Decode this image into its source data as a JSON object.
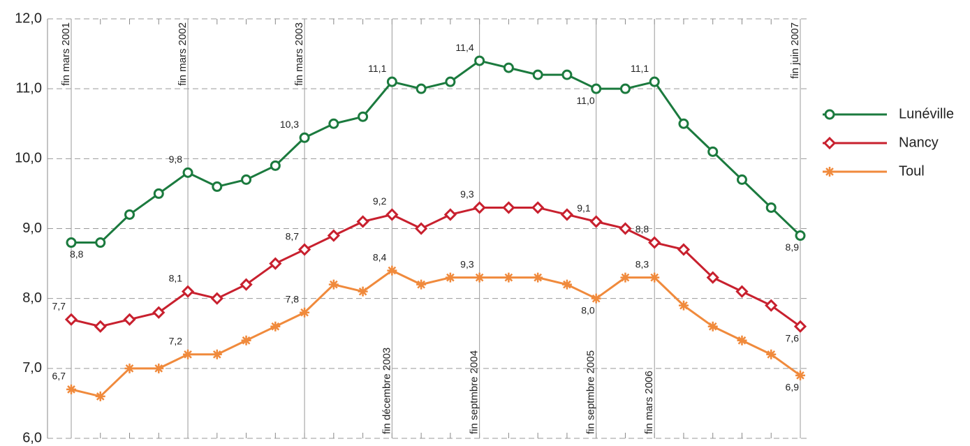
{
  "chart_data": {
    "type": "line",
    "categories": [
      "fin mars 2001",
      null,
      null,
      null,
      "fin mars 2002",
      null,
      null,
      null,
      "fin mars 2003",
      null,
      null,
      "fin décembre 2003",
      null,
      null,
      "fin septmbre 2004",
      null,
      null,
      null,
      "fin septmbre 2005",
      null,
      "fin mars 2006",
      null,
      null,
      null,
      null,
      "fin juin 2007"
    ],
    "series": [
      {
        "name": "Lunéville",
        "color": "#1b7a3e",
        "marker": "circle",
        "values": [
          8.8,
          8.8,
          9.2,
          9.5,
          9.8,
          9.6,
          9.7,
          9.9,
          10.3,
          10.5,
          10.6,
          11.1,
          11.0,
          11.1,
          11.4,
          11.3,
          11.2,
          11.2,
          11.0,
          11.0,
          11.1,
          10.5,
          10.1,
          9.7,
          9.3,
          8.9
        ],
        "value_labels": [
          "8,8",
          null,
          null,
          null,
          "9,8",
          null,
          null,
          null,
          "10,3",
          null,
          null,
          "11,1",
          null,
          null,
          "11,4",
          null,
          null,
          null,
          "11,0",
          null,
          "11,1",
          null,
          null,
          null,
          null,
          "8,9"
        ]
      },
      {
        "name": "Nancy",
        "color": "#c8202e",
        "marker": "diamond",
        "values": [
          7.7,
          7.6,
          7.7,
          7.8,
          8.1,
          8.0,
          8.2,
          8.5,
          8.7,
          8.9,
          9.1,
          9.2,
          9.0,
          9.2,
          9.3,
          9.3,
          9.3,
          9.2,
          9.1,
          9.0,
          8.8,
          8.7,
          8.3,
          8.1,
          7.9,
          7.6
        ],
        "value_labels": [
          "7,7",
          null,
          null,
          null,
          "8,1",
          null,
          null,
          null,
          "8,7",
          null,
          null,
          "9,2",
          null,
          null,
          "9,3",
          null,
          null,
          null,
          "9,1",
          null,
          "8,8",
          null,
          null,
          null,
          null,
          "7,6"
        ]
      },
      {
        "name": "Toul",
        "color": "#f08a3c",
        "marker": "asterisk",
        "values": [
          6.7,
          6.6,
          7.0,
          7.0,
          7.2,
          7.2,
          7.4,
          7.6,
          7.8,
          8.2,
          8.1,
          8.4,
          8.2,
          8.3,
          8.3,
          8.3,
          8.3,
          8.2,
          8.0,
          8.3,
          8.3,
          7.9,
          7.6,
          7.4,
          7.2,
          6.9
        ],
        "value_labels": [
          "6,7",
          null,
          null,
          null,
          "7,2",
          null,
          null,
          null,
          "7,8",
          null,
          null,
          "8,4",
          null,
          null,
          null,
          null,
          null,
          null,
          "8,0",
          null,
          "8,3",
          null,
          null,
          null,
          null,
          "6,9"
        ]
      }
    ],
    "annotations": [
      "9,3"
    ],
    "ylim": [
      6,
      12
    ],
    "yticks": [
      {
        "value": 6,
        "label": "6,0"
      },
      {
        "value": 7,
        "label": "7,0"
      },
      {
        "value": 8,
        "label": "8,0"
      },
      {
        "value": 9,
        "label": "9,0"
      },
      {
        "value": 10,
        "label": "10,0"
      },
      {
        "value": 11,
        "label": "11,0"
      },
      {
        "value": 12,
        "label": "12,0"
      }
    ],
    "grid": true,
    "legend": "right"
  }
}
